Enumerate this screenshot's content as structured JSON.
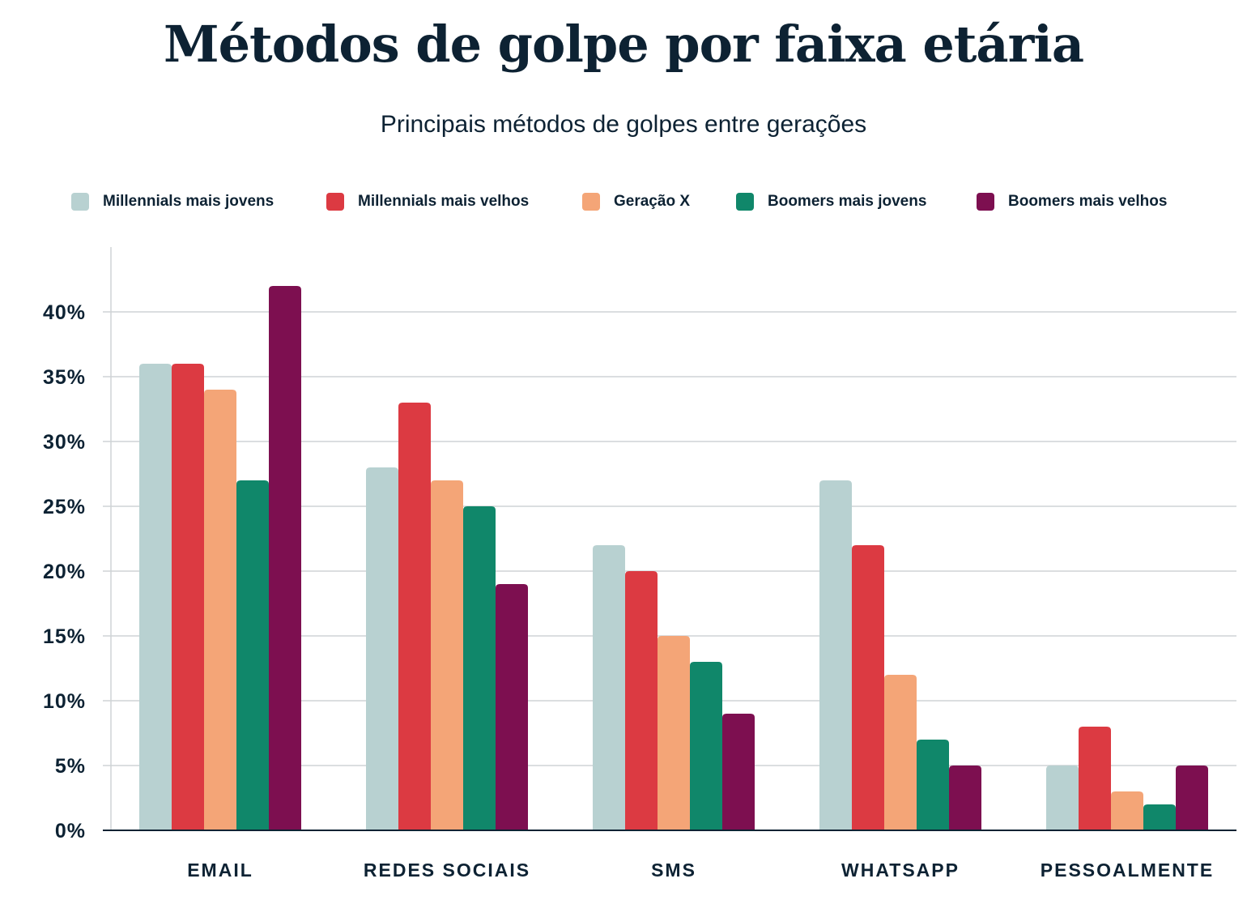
{
  "chart_data": {
    "type": "bar",
    "title": "Métodos de golpe por faixa etária",
    "subtitle": "Principais métodos de golpes entre gerações",
    "categories": [
      "EMAIL",
      "REDES SOCIAIS",
      "SMS",
      "WHATSAPP",
      "PESSOALMENTE"
    ],
    "series": [
      {
        "name": "Millennials mais jovens",
        "color": "#b8d1d1",
        "values": [
          36,
          28,
          22,
          27,
          5
        ]
      },
      {
        "name": "Millennials mais velhos",
        "color": "#dc3a42",
        "values": [
          36,
          33,
          20,
          22,
          8
        ]
      },
      {
        "name": "Geração X",
        "color": "#f4a577",
        "values": [
          34,
          27,
          15,
          12,
          3
        ]
      },
      {
        "name": "Boomers mais jovens",
        "color": "#10876a",
        "values": [
          27,
          25,
          13,
          7,
          2
        ]
      },
      {
        "name": "Boomers mais velhos",
        "color": "#7d0f50",
        "values": [
          42,
          19,
          9,
          5,
          5
        ]
      }
    ],
    "yticks": [
      "0%",
      "5%",
      "10%",
      "15%",
      "20%",
      "25%",
      "30%",
      "35%",
      "40%"
    ],
    "ylim": [
      0,
      45
    ],
    "grid": true,
    "legend_position": "top"
  }
}
